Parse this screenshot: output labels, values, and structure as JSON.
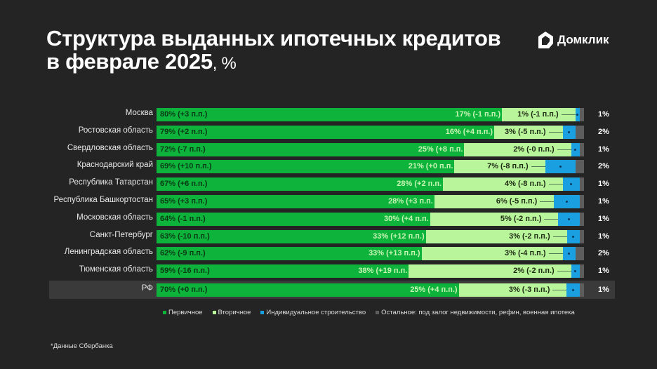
{
  "title_line1": "Структура выданных ипотечных кредитов",
  "title_line2": "в феврале 2025",
  "title_unit": ", %",
  "logo_text": "Домклик",
  "footnote": "*Данные Сбербанка",
  "colors": {
    "primary": "#0db33a",
    "secondary": "#b9f59a",
    "individual": "#1a9fe0",
    "other": "#5d5d5d"
  },
  "chart_data": {
    "type": "bar",
    "stacked": true,
    "orientation": "horizontal",
    "legend_position": "bottom",
    "categories": [
      "Москва",
      "Ростовская область",
      "Свердловская область",
      "Краснодарский край",
      "Республика Татарстан",
      "Республика Башкортостан",
      "Московская область",
      "Санкт-Петербург",
      "Ленинградская область",
      "Тюменская область",
      "РФ"
    ],
    "series": [
      {
        "name": "Первичное",
        "values": [
          80,
          79,
          72,
          69,
          67,
          65,
          64,
          63,
          62,
          59,
          70
        ],
        "labels": [
          "80% (+3 п.п.)",
          "79% (+2 п.п.)",
          "72% (-7 п.п.)",
          "69% (+10 п.п.)",
          "67% (+6 п.п.)",
          "65% (+3 п.п.)",
          "64% (-1 п.п.)",
          "63% (-10 п.п.)",
          "62% (-9 п.п.)",
          "59% (-16 п.п.)",
          "70% (+0 п.п.)"
        ]
      },
      {
        "name": "Вторичное",
        "values": [
          17,
          16,
          25,
          21,
          28,
          28,
          30,
          33,
          33,
          38,
          25
        ],
        "labels": [
          "17% (-1 п.п.)",
          "16% (+4 п.п.)",
          "25% (+8 п.п.",
          "21% (+0 п.п.",
          "28% (+2 п.п.",
          "28% (+3 п.п.",
          "30% (+4 п.п.",
          "33% (+12 п.п.)",
          "33% (+13 п.п.)",
          "38% (+19 п.п.",
          "25% (+4 п.п.)"
        ]
      },
      {
        "name": "Индивидуальное строительство",
        "values": [
          1,
          3,
          2,
          7,
          4,
          6,
          5,
          3,
          3,
          2,
          3
        ],
        "labels": [
          "1% (-1 п.п.)",
          "3% (-5 п.п.)",
          "2% (-0 п.п.)",
          "7% (-8 п.п.)",
          "4% (-8 п.п.)",
          "6% (-5 п.п.)",
          "5% (-2 п.п.)",
          "3% (-2 п.п.)",
          "3% (-4 п.п.)",
          "2% (-2 п.п.)",
          "3% (-3 п.п.)"
        ]
      },
      {
        "name": "Остальное: под залог недвижимости, рефин, военная ипотека",
        "values": [
          1,
          2,
          1,
          2,
          1,
          1,
          1,
          1,
          2,
          1,
          1
        ],
        "labels": [
          "1%",
          "2%",
          "1%",
          "2%",
          "1%",
          "1%",
          "1%",
          "1%",
          "2%",
          "1%",
          "1%"
        ]
      }
    ],
    "xlim": [
      0,
      100
    ]
  }
}
